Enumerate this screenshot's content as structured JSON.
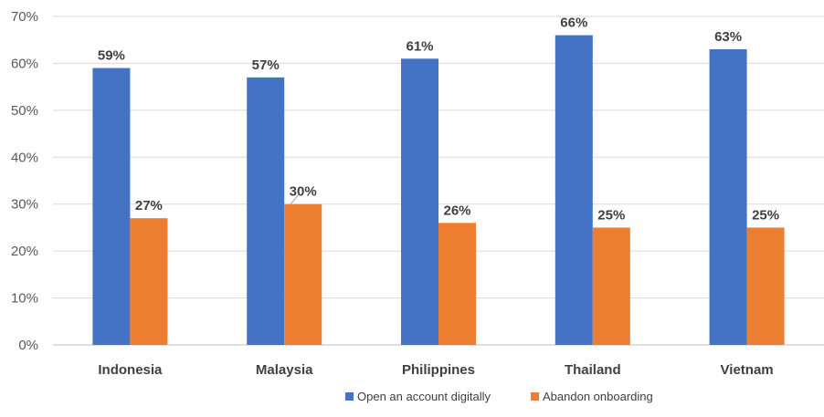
{
  "chart_data": {
    "type": "bar",
    "title": "",
    "xlabel": "",
    "ylabel": "",
    "categories": [
      "Indonesia",
      "Malaysia",
      "Philippines",
      "Thailand",
      "Vietnam"
    ],
    "series": [
      {
        "name": "Open an account digitally",
        "values": [
          59,
          57,
          61,
          66,
          63
        ],
        "color": "#4472c4"
      },
      {
        "name": "Abandon onboarding",
        "values": [
          27,
          30,
          26,
          25,
          25
        ],
        "color": "#ed7d31"
      }
    ],
    "value_suffix": "%",
    "ylim": [
      0,
      70
    ],
    "yticks": [
      0,
      10,
      20,
      30,
      40,
      50,
      60,
      70
    ],
    "ytick_labels": [
      "0%",
      "10%",
      "20%",
      "30%",
      "40%",
      "50%",
      "60%",
      "70%"
    ],
    "grid": true,
    "legend_position": "bottom"
  }
}
